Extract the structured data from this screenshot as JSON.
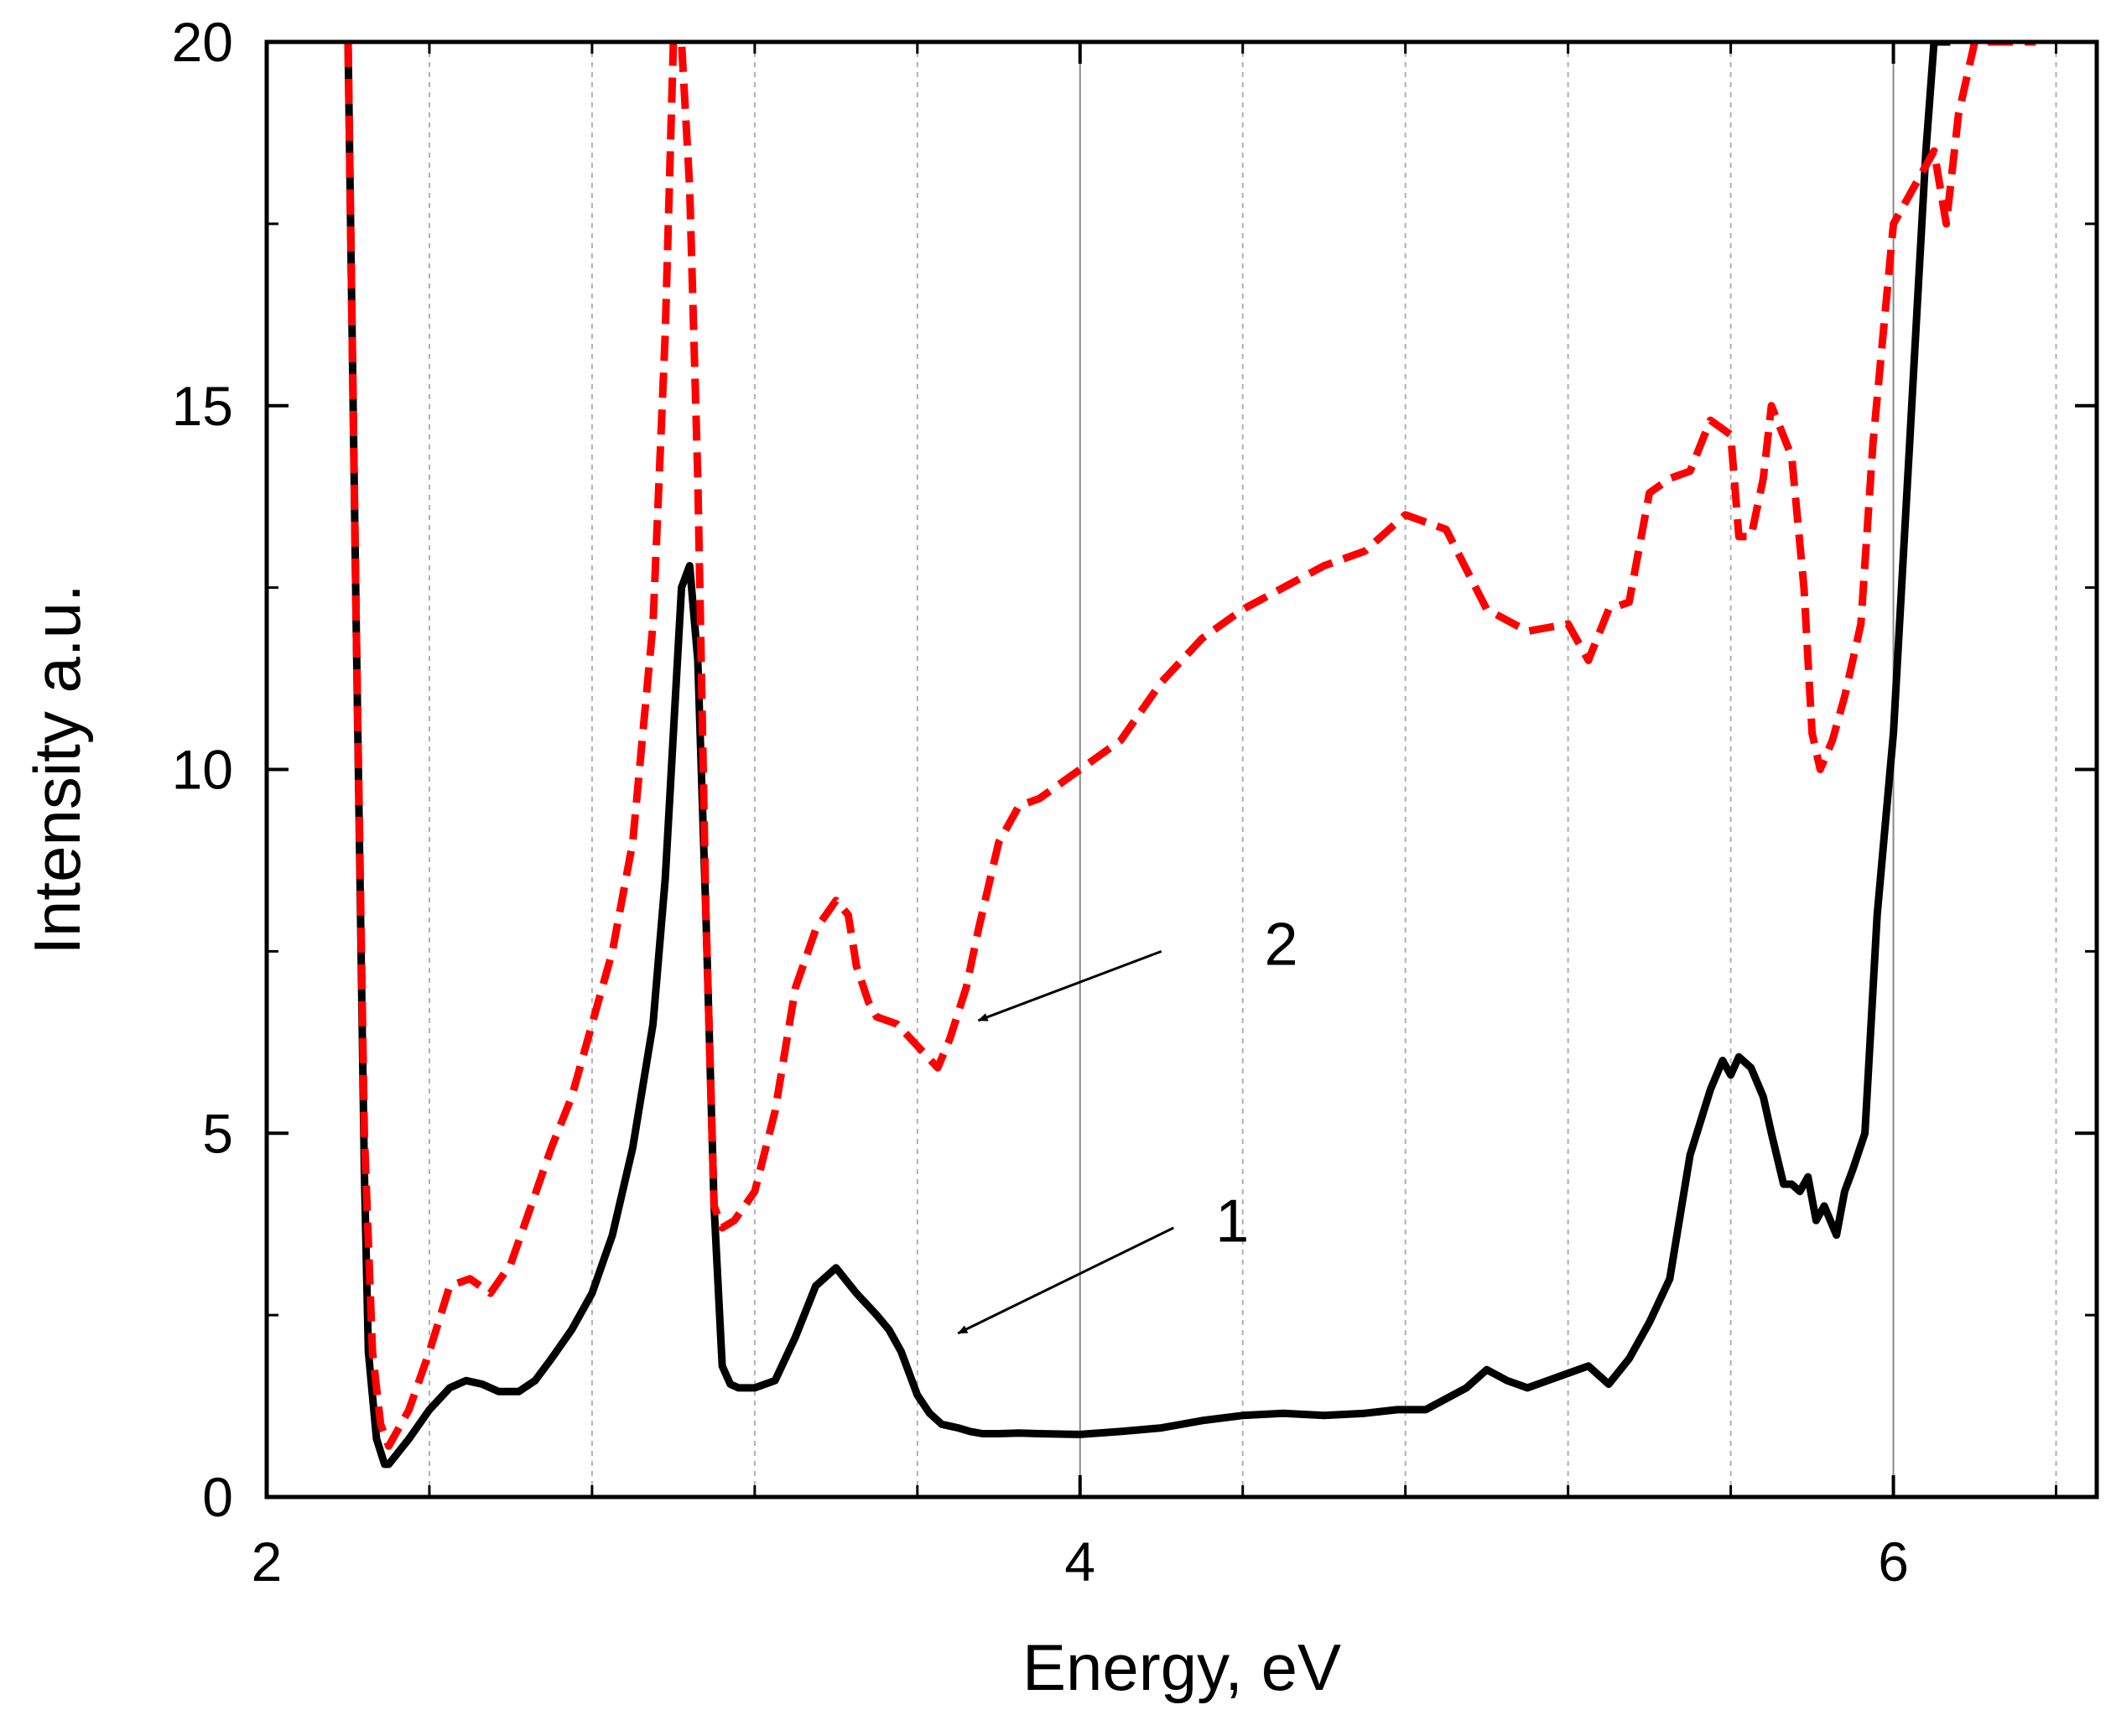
{
  "chart_data": {
    "type": "line",
    "title": "",
    "xlabel": "Energy, eV",
    "ylabel": "Intensity a.u.",
    "xlim": [
      2.0,
      6.5
    ],
    "ylim": [
      0,
      20
    ],
    "x_ticks": [
      2,
      4,
      6
    ],
    "x_tick_labels": [
      "2",
      "4",
      "6"
    ],
    "x_minor_ticks": [
      2.4,
      2.8,
      3.2,
      3.6,
      4.4,
      4.8,
      5.2,
      5.6,
      6.4
    ],
    "y_ticks": [
      0,
      5,
      10,
      15,
      20
    ],
    "y_tick_labels": [
      "0",
      "5",
      "10",
      "15",
      "20"
    ],
    "y_minor_ticks": [
      2.5,
      7.5,
      12.5,
      17.5
    ],
    "grid": true,
    "colors": {
      "series1": "#000000",
      "series2": "#ff0000",
      "grid": "#b0b0b0",
      "arrow": "#000000"
    },
    "series": [
      {
        "name": "1",
        "style": "solid",
        "x": [
          2.2,
          2.22,
          2.24,
          2.25,
          2.27,
          2.29,
          2.3,
          2.35,
          2.4,
          2.45,
          2.49,
          2.53,
          2.57,
          2.62,
          2.66,
          2.7,
          2.75,
          2.8,
          2.85,
          2.9,
          2.95,
          2.98,
          3.0,
          3.02,
          3.04,
          3.06,
          3.08,
          3.1,
          3.12,
          3.14,
          3.16,
          3.18,
          3.2,
          3.25,
          3.3,
          3.35,
          3.4,
          3.45,
          3.5,
          3.53,
          3.56,
          3.58,
          3.6,
          3.63,
          3.66,
          3.7,
          3.73,
          3.76,
          3.8,
          3.85,
          3.9,
          4.0,
          4.1,
          4.2,
          4.3,
          4.4,
          4.5,
          4.6,
          4.7,
          4.78,
          4.85,
          4.9,
          4.95,
          5.0,
          5.05,
          5.1,
          5.15,
          5.2,
          5.25,
          5.3,
          5.35,
          5.4,
          5.45,
          5.5,
          5.55,
          5.58,
          5.6,
          5.62,
          5.65,
          5.68,
          5.7,
          5.73,
          5.75,
          5.77,
          5.79,
          5.81,
          5.83,
          5.86,
          5.88,
          5.9,
          5.93,
          5.96,
          6.0,
          6.02,
          6.04,
          6.06,
          6.08,
          6.1,
          6.12,
          6.14
        ],
        "y": [
          20,
          12,
          4.5,
          2.0,
          0.8,
          0.45,
          0.45,
          0.8,
          1.2,
          1.5,
          1.6,
          1.55,
          1.45,
          1.45,
          1.6,
          1.9,
          2.3,
          2.8,
          3.6,
          4.8,
          6.5,
          8.5,
          10.5,
          12.5,
          12.8,
          11.5,
          8.0,
          4.0,
          1.8,
          1.55,
          1.5,
          1.5,
          1.5,
          1.6,
          2.2,
          2.9,
          3.15,
          2.8,
          2.5,
          2.3,
          2.0,
          1.7,
          1.4,
          1.15,
          1.0,
          0.95,
          0.9,
          0.87,
          0.87,
          0.88,
          0.87,
          0.86,
          0.9,
          0.95,
          1.05,
          1.12,
          1.15,
          1.12,
          1.15,
          1.2,
          1.2,
          1.35,
          1.5,
          1.75,
          1.6,
          1.5,
          1.6,
          1.7,
          1.8,
          1.55,
          1.9,
          2.4,
          3.0,
          4.7,
          5.6,
          6.0,
          5.8,
          6.05,
          5.9,
          5.5,
          5.0,
          4.3,
          4.3,
          4.2,
          4.4,
          3.8,
          4.0,
          3.6,
          4.2,
          4.5,
          5.0,
          8.0,
          10.5,
          12.5,
          14.5,
          16.5,
          18.5,
          20,
          20,
          20
        ]
      },
      {
        "name": "2",
        "style": "dashed",
        "x": [
          2.2,
          2.22,
          2.24,
          2.26,
          2.28,
          2.3,
          2.35,
          2.4,
          2.45,
          2.5,
          2.55,
          2.6,
          2.65,
          2.7,
          2.75,
          2.8,
          2.85,
          2.9,
          2.95,
          2.98,
          3.0,
          3.02,
          3.04,
          3.06,
          3.08,
          3.1,
          3.12,
          3.15,
          3.2,
          3.25,
          3.3,
          3.35,
          3.4,
          3.43,
          3.45,
          3.48,
          3.5,
          3.55,
          3.6,
          3.65,
          3.68,
          3.72,
          3.75,
          3.8,
          3.85,
          3.9,
          3.95,
          4.0,
          4.1,
          4.2,
          4.3,
          4.4,
          4.5,
          4.6,
          4.7,
          4.8,
          4.9,
          5.0,
          5.1,
          5.2,
          5.25,
          5.3,
          5.35,
          5.4,
          5.45,
          5.5,
          5.55,
          5.6,
          5.62,
          5.65,
          5.68,
          5.7,
          5.75,
          5.78,
          5.8,
          5.82,
          5.85,
          5.88,
          5.9,
          5.92,
          5.95,
          6.0,
          6.05,
          6.1,
          6.13,
          6.16,
          6.2,
          6.23,
          6.26,
          6.28,
          6.3,
          6.32,
          6.35
        ],
        "y": [
          20,
          12,
          5.0,
          2.0,
          1.0,
          0.7,
          1.2,
          2.0,
          2.9,
          3.0,
          2.8,
          3.2,
          4.0,
          4.8,
          5.5,
          6.5,
          7.5,
          9.0,
          12.0,
          16.0,
          20,
          20,
          18,
          14,
          8,
          4.0,
          3.7,
          3.8,
          4.2,
          5.3,
          7.0,
          7.8,
          8.2,
          8.0,
          7.3,
          6.8,
          6.6,
          6.5,
          6.2,
          5.9,
          6.3,
          7.0,
          7.8,
          9.0,
          9.5,
          9.6,
          9.8,
          10.0,
          10.4,
          11.2,
          11.8,
          12.2,
          12.5,
          12.8,
          13.0,
          13.5,
          13.3,
          12.2,
          11.9,
          12.0,
          11.5,
          12.2,
          12.3,
          13.8,
          14.0,
          14.1,
          14.8,
          14.6,
          13.2,
          13.2,
          14.0,
          15.0,
          14.3,
          12.5,
          10.5,
          10.0,
          10.4,
          11.0,
          11.5,
          12.0,
          14.5,
          17.5,
          18.0,
          18.5,
          17.5,
          19.0,
          20,
          20,
          20,
          20,
          20,
          20,
          20
        ]
      }
    ],
    "annotations": [
      {
        "text": "1",
        "label_x": 4.23,
        "label_y": 3.8,
        "arrow_from_x": 4.23,
        "arrow_from_y": 3.7,
        "arrow_to_x": 3.7,
        "arrow_to_y": 2.25
      },
      {
        "text": "2",
        "label_x": 4.35,
        "label_y": 7.6,
        "arrow_from_x": 4.2,
        "arrow_from_y": 7.5,
        "arrow_to_x": 3.75,
        "arrow_to_y": 6.55
      }
    ]
  }
}
